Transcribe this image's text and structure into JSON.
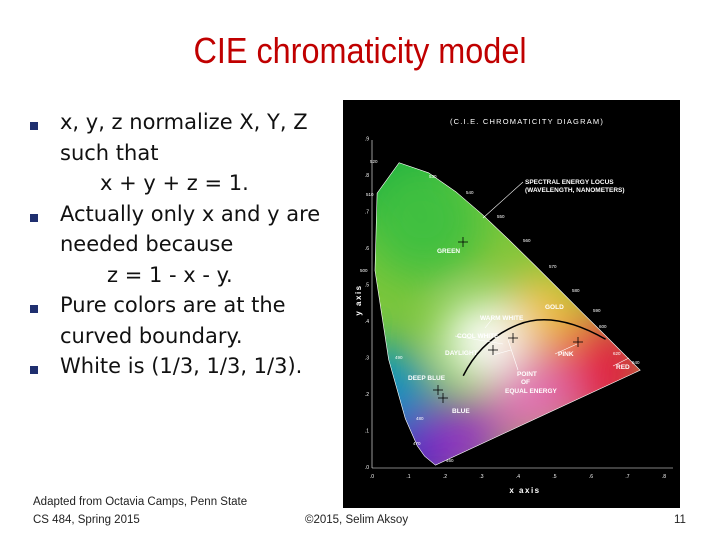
{
  "header": {
    "title": "CIE chromaticity model"
  },
  "bullets": [
    {
      "lines": [
        "x, y, z normalize X, Y, Z",
        "such that",
        "x + y + z = 1."
      ]
    },
    {
      "lines": [
        "Actually only x and y are",
        "needed because",
        "z = 1 - x - y."
      ]
    },
    {
      "lines": [
        "Pure colors are at the",
        "curved boundary."
      ]
    },
    {
      "lines": [
        "White is (1/3, 1/3, 1/3)."
      ]
    }
  ],
  "figure": {
    "title": "(C.I.E. CHROMATICITY DIAGRAM)",
    "x_label": "x axis",
    "y_label": "y axis",
    "labels": [
      "SPECTRAL ENERGY LOCUS",
      "(WAVELENGTH, NANOMETERS)",
      "GREEN",
      "WARM WHITE",
      "GOLD",
      "COOL WHITE",
      "DAYLIGHT",
      "PINK",
      "RED",
      "DEEP BLUE",
      "POINT",
      "OF",
      "EQUAL ENERGY",
      "BLUE"
    ],
    "x_ticks": [
      ".0",
      ".1",
      ".2",
      ".3",
      ".4",
      ".5",
      ".6",
      ".7",
      ".8"
    ],
    "y_ticks": [
      ".0",
      ".1",
      ".2",
      ".3",
      ".4",
      ".5",
      ".6",
      ".7",
      ".8",
      ".9"
    ],
    "wavelengths": [
      "520",
      "530",
      "510",
      "540",
      "550",
      "560",
      "570",
      "500",
      "580",
      "590",
      "600",
      "620",
      "640",
      "490",
      "480",
      "470",
      "460"
    ]
  },
  "footer": {
    "credit": "Adapted from Octavia Camps, Penn State",
    "course": "CS 484, Spring 2015",
    "copyright": "©2015, Selim Aksoy",
    "page": "11"
  }
}
